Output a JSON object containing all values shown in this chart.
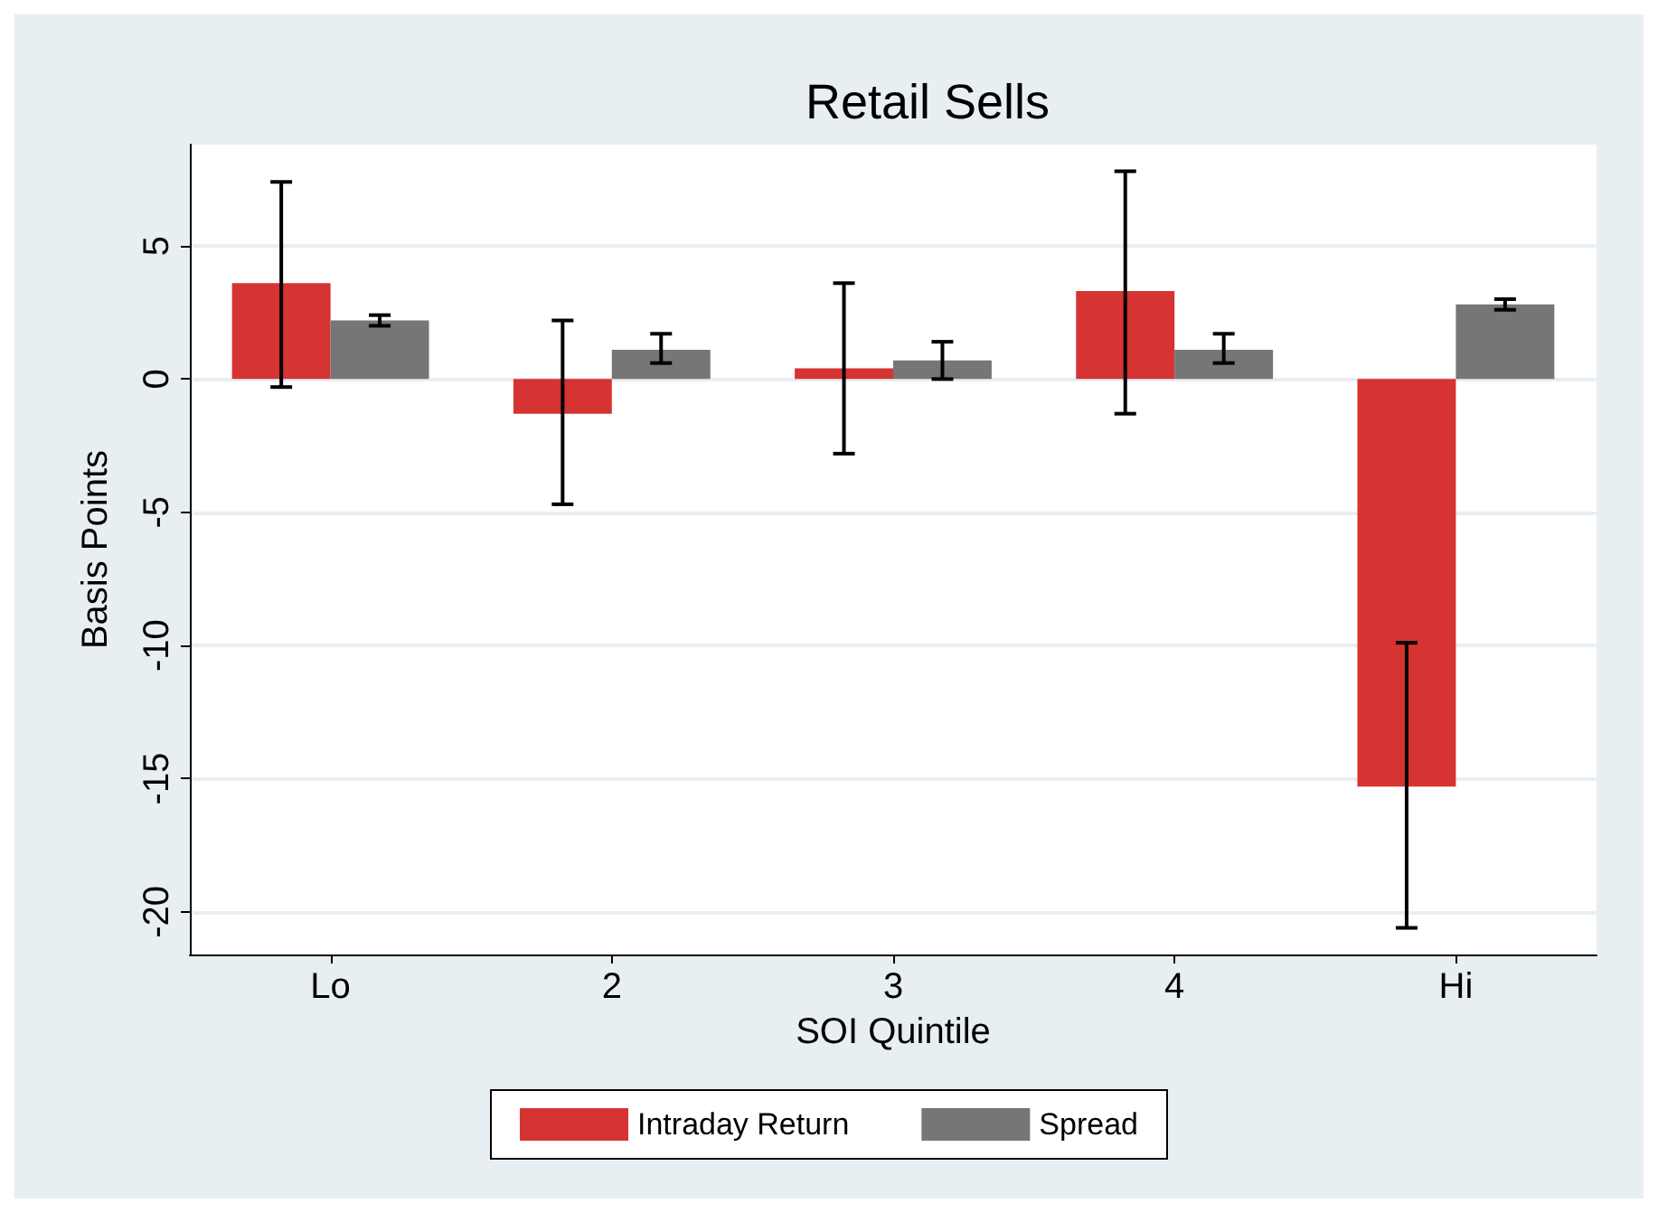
{
  "chart_data": {
    "type": "bar",
    "title": "Retail Sells",
    "xlabel": "SOI Quintile",
    "ylabel": "Basis Points",
    "categories": [
      "Lo",
      "2",
      "3",
      "4",
      "Hi"
    ],
    "series": [
      {
        "name": "Intraday Return",
        "color": "#d63333",
        "values": [
          3.6,
          -1.3,
          0.4,
          3.3,
          -15.3
        ],
        "errors": [
          [
            -0.3,
            7.4
          ],
          [
            -4.7,
            2.2
          ],
          [
            -2.8,
            3.6
          ],
          [
            -1.3,
            7.8
          ],
          [
            -20.6,
            -9.9
          ]
        ]
      },
      {
        "name": "Spread",
        "color": "#767676",
        "values": [
          2.2,
          1.1,
          0.7,
          1.1,
          2.8
        ],
        "errors": [
          [
            2.0,
            2.4
          ],
          [
            0.6,
            1.7
          ],
          [
            0.0,
            1.4
          ],
          [
            0.6,
            1.7
          ],
          [
            2.6,
            3.0
          ]
        ]
      }
    ],
    "ylim": [
      -21.6,
      8.8
    ],
    "yticks": [
      -20,
      -15,
      -10,
      -5,
      0,
      5
    ],
    "grid": "y",
    "legend": "bottom"
  }
}
